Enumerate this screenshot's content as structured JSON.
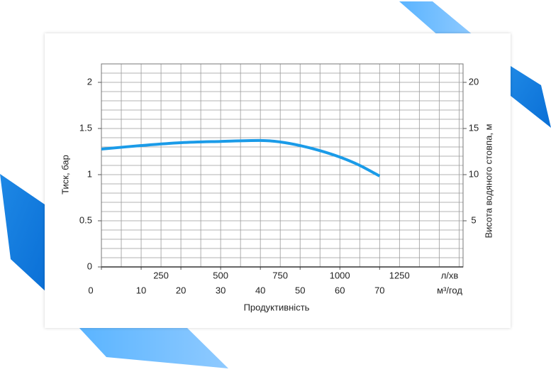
{
  "chart_data": {
    "type": "line",
    "x_label": "Продуктивність",
    "y_label": "Тиск, бар",
    "y2_label": "Висота водяного стовпа, м",
    "x_unit": "м³/год",
    "x2_unit": "л/хв",
    "xlim": [
      0,
      91
    ],
    "xticks": [
      0,
      10,
      20,
      30,
      40,
      50,
      60,
      70
    ],
    "x2lim": [
      0,
      1517
    ],
    "x2ticks": [
      250,
      500,
      750,
      1000,
      1250
    ],
    "ylim": [
      0,
      2.2
    ],
    "yticks": [
      0,
      0.5,
      1,
      1.5,
      2
    ],
    "y2lim": [
      0,
      22
    ],
    "y2ticks": [
      5,
      10,
      15,
      20
    ],
    "xgrid": [
      5,
      10,
      15,
      20,
      25,
      30,
      35,
      40,
      45,
      50,
      55,
      60,
      65,
      70,
      75,
      80,
      85,
      90
    ],
    "ygrid": [
      0.1,
      0.2,
      0.3,
      0.4,
      0.5,
      0.6,
      0.7,
      0.8,
      0.9,
      1,
      1.1,
      1.2,
      1.3,
      1.4,
      1.5,
      1.6,
      1.7,
      1.8,
      1.9,
      2,
      2.1,
      2.2
    ],
    "grid": true,
    "series": [
      {
        "color": "#1a9be8",
        "x": [
          0,
          10,
          20,
          30,
          40,
          45,
          50,
          55,
          60,
          65,
          70
        ],
        "values": [
          1.277,
          1.315,
          1.346,
          1.36,
          1.37,
          1.354,
          1.315,
          1.26,
          1.19,
          1.1,
          0.985
        ]
      }
    ]
  }
}
